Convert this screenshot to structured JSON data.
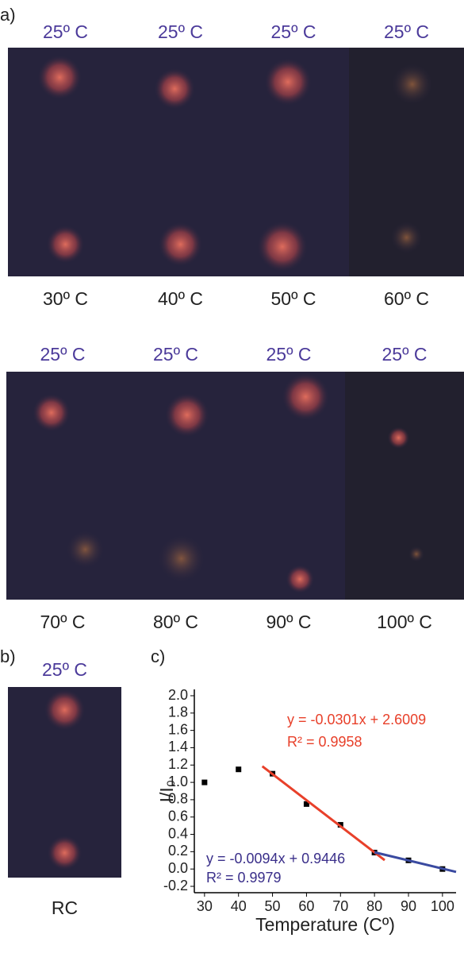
{
  "panel_labels": [
    "a)",
    "b)",
    "c)"
  ],
  "photos": [
    {
      "top": "25º C",
      "bottom": "30º C"
    },
    {
      "top": "25º C",
      "bottom": "40º C"
    },
    {
      "top": "25º C",
      "bottom": "50º C"
    },
    {
      "top": "25º C",
      "bottom": "60º C"
    },
    {
      "top": "25º C",
      "bottom": "70º C"
    },
    {
      "top": "25º C",
      "bottom": "80º C"
    },
    {
      "top": "25º C",
      "bottom": "90º C"
    },
    {
      "top": "25º C",
      "bottom": "100º C"
    },
    {
      "top": "25º C",
      "bottom": "RC"
    }
  ],
  "chart_data": {
    "type": "scatter",
    "x_label": "Temperature (Cº)",
    "y_label": "I/I₀",
    "xlim": [
      27,
      104
    ],
    "ylim": [
      -0.2,
      2.0
    ],
    "xticks": [
      30,
      40,
      50,
      60,
      70,
      80,
      90,
      100
    ],
    "yticks": [
      -0.2,
      {
        "value": 0,
        "label": "0.0"
      },
      0.2,
      0.4,
      0.6,
      0.8,
      {
        "value": 1,
        "label": "1.0"
      },
      1.2,
      1.4,
      1.6,
      1.8,
      {
        "value": 2,
        "label": "2.0"
      }
    ],
    "series": [
      {
        "type": "scatter",
        "color": "#000000",
        "x": [
          30,
          40,
          50,
          60,
          70,
          80,
          90,
          100
        ],
        "values": [
          1.0,
          1.15,
          1.1,
          0.75,
          0.51,
          0.19,
          0.1,
          0.0
        ]
      },
      {
        "type": "line",
        "color": "#e8402a",
        "x": [
          47,
          83
        ],
        "values": [
          1.186,
          0.102
        ]
      },
      {
        "type": "line",
        "color": "#3a4aa0",
        "x": [
          80,
          104
        ],
        "values": [
          0.193,
          -0.033
        ]
      }
    ],
    "annotations": [
      {
        "text": "y = -0.0301x + 2.6009",
        "color": "#e8402a"
      },
      {
        "text": "R² = 0.9958",
        "color": "#e8402a"
      },
      {
        "text": "y = -0.0094x + 0.9446",
        "color": "#3a2f8a"
      },
      {
        "text": "R² = 0.9979",
        "color": "#3a2f8a"
      }
    ]
  }
}
